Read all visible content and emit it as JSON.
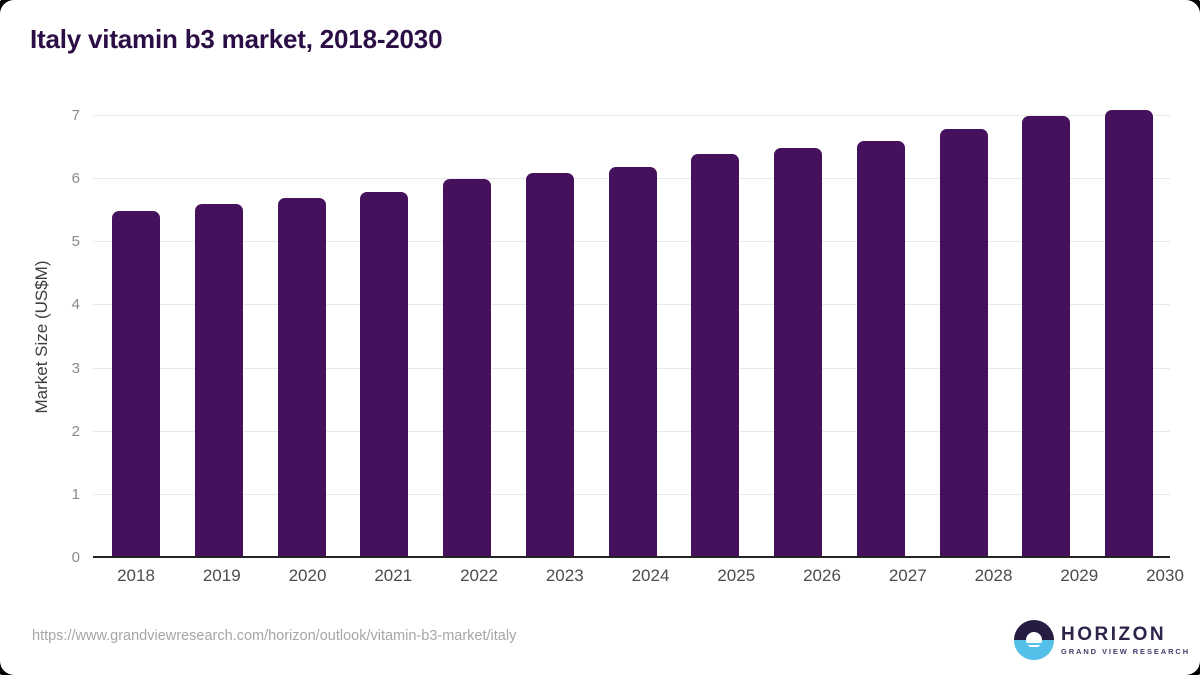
{
  "title": "Italy vitamin b3 market, 2018-2030",
  "chart_data": {
    "type": "bar",
    "title": "Italy vitamin b3 market, 2018-2030",
    "categories": [
      "2018",
      "2019",
      "2020",
      "2021",
      "2022",
      "2023",
      "2024",
      "2025",
      "2026",
      "2027",
      "2028",
      "2029",
      "2030"
    ],
    "values": [
      5.5,
      5.6,
      5.7,
      5.8,
      6.0,
      6.1,
      6.2,
      6.4,
      6.5,
      6.6,
      6.8,
      7.0,
      7.1
    ],
    "xlabel": "",
    "ylabel": "Market Size (US$M)",
    "yticks": [
      0,
      1,
      2,
      3,
      4,
      5,
      6,
      7
    ],
    "ylim": [
      0,
      7.32
    ],
    "grid": true,
    "legend_position": "none",
    "bar_color": "#45105c"
  },
  "footer": {
    "source_url": "https://www.grandviewresearch.com/horizon/outlook/vitamin-b3-market/italy",
    "logo": {
      "name": "HORIZON",
      "tagline": "GRAND VIEW RESEARCH"
    }
  },
  "colors": {
    "title": "#2c0e46",
    "bar": "#45105c",
    "axis_line": "#232323",
    "gridline": "#e9e9e9",
    "y_tick_text": "#8b8b8b",
    "x_tick_text": "#4c4c4c",
    "url_text": "#a6a6a6",
    "logo_dark": "#261c41",
    "logo_blue": "#54bfe9"
  }
}
